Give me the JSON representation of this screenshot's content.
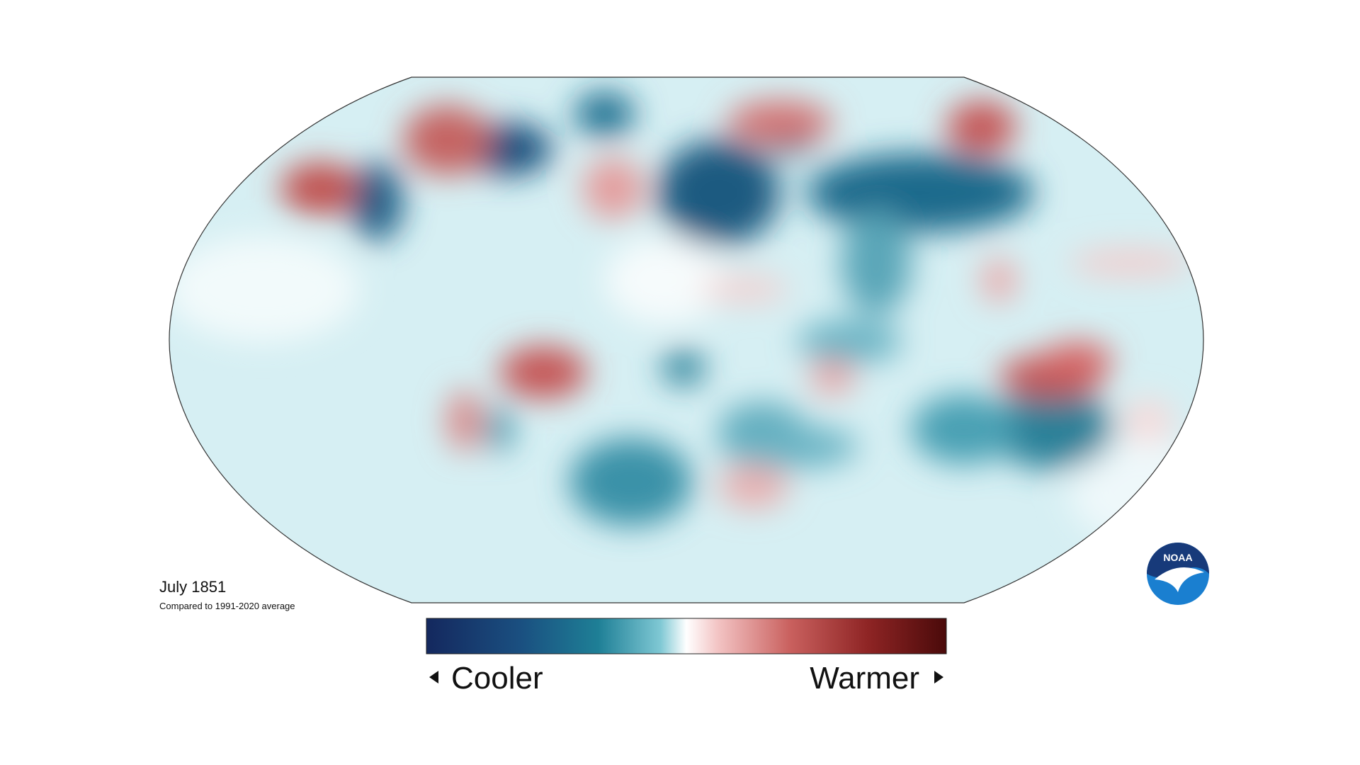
{
  "map": {
    "title": "July 1851",
    "subtitle": "Compared to 1991-2020 average"
  },
  "legend": {
    "low_label": "Cooler",
    "high_label": "Warmer"
  },
  "logo": {
    "text": "NOAA"
  }
}
